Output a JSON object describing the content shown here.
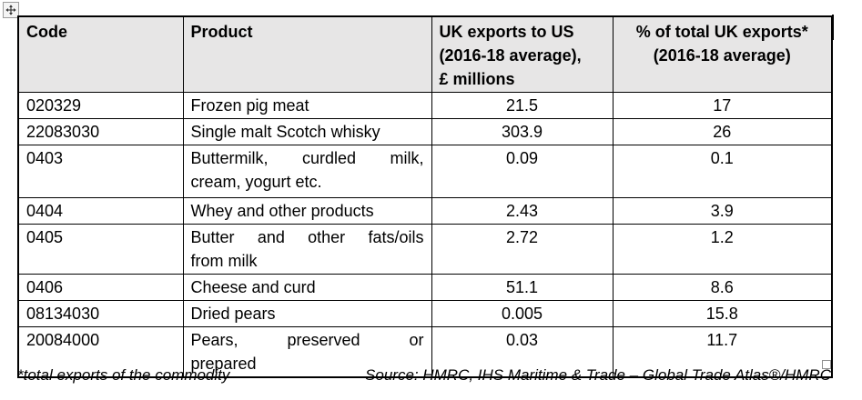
{
  "window": {
    "background": "#ffffff",
    "header_fill": "#e7e6e6",
    "border_color": "#000000"
  },
  "icons": {
    "move_handle": "four-direction-move-arrows",
    "resize_handle": "small-square"
  },
  "table": {
    "columns": [
      {
        "label": "Code",
        "align": "left"
      },
      {
        "label": "Product",
        "align": "left"
      },
      {
        "label": "UK exports to US\n(2016-18 average),\n£ millions",
        "align": "left"
      },
      {
        "label": "% of total UK exports*\n(2016-18 average)",
        "align": "center"
      }
    ],
    "rows": [
      {
        "code": "020329",
        "product": "Frozen pig meat",
        "exports": "21.5",
        "pct": "17"
      },
      {
        "code": "22083030",
        "product": "Single malt Scotch whisky",
        "exports": "303.9",
        "pct": "26"
      },
      {
        "code": "0403",
        "product": "Buttermilk, curdled milk,\ncream, yogurt etc.",
        "exports": "0.09",
        "pct": "0.1"
      },
      {
        "code": "0404",
        "product": "Whey and other products",
        "exports": "2.43",
        "pct": "3.9"
      },
      {
        "code": "0405",
        "product": "Butter and other fats/oils\nfrom milk",
        "exports": "2.72",
        "pct": "1.2"
      },
      {
        "code": "0406",
        "product": "Cheese and curd",
        "exports": "51.1",
        "pct": "8.6"
      },
      {
        "code": "08134030",
        "product": "Dried pears",
        "exports": "0.005",
        "pct": "15.8"
      },
      {
        "code": "20084000",
        "product": "Pears, preserved or\nprepared",
        "exports": "0.03",
        "pct": "11.7"
      }
    ]
  },
  "footer": {
    "note": "*total exports of the commodity",
    "source": "Source: HMRC, IHS Maritime & Trade – Global Trade Atlas®/HMRC"
  }
}
